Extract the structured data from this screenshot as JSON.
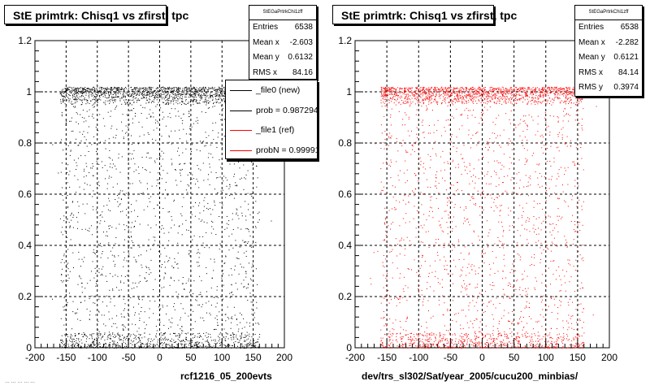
{
  "chart_data": [
    {
      "type": "scatter",
      "title": "StE primtrk: Chisq1  vs zfirst, tpc",
      "xlabel": "rcf1216_05_200evts",
      "ylabel": "",
      "xlim": [
        -200,
        200
      ],
      "ylim": [
        0,
        1.2
      ],
      "x_ticks": [
        "-200",
        "-150",
        "-100",
        "-50",
        "0",
        "50",
        "100",
        "150",
        "200"
      ],
      "y_ticks": [
        "0",
        "0.2",
        "0.4",
        "0.6",
        "0.8",
        "1",
        "1.2"
      ],
      "grid": true,
      "marker_color": "#000000",
      "x_range": [
        -160,
        160
      ],
      "dense_bands": [
        [
          0.95,
          1.02
        ],
        [
          0.0,
          0.06
        ]
      ],
      "stats": {
        "title": "StEGaPrtrkChi1zff",
        "rows": [
          {
            "label": "Entries",
            "value": "6538"
          },
          {
            "label": "Mean x",
            "value": "-2.603"
          },
          {
            "label": "Mean y",
            "value": "0.6132"
          },
          {
            "label": "RMS x",
            "value": "84.16"
          }
        ]
      },
      "legend": {
        "placement": "top-right",
        "entries": [
          {
            "label": "_file0 (new)",
            "color": "#000000"
          },
          {
            "label": "prob = 0.987294",
            "color": "#000000"
          },
          {
            "label": "_file1 (ref)",
            "color": "#ff0000"
          },
          {
            "label": "probN = 0.99991",
            "color": "#ff0000"
          }
        ]
      }
    },
    {
      "type": "scatter",
      "title": "StE primtrk: Chisq1  vs zfirst, tpc",
      "xlabel": "dev/trs_sl302/Sat/year_2005/cucu200_minbias/",
      "ylabel": "",
      "xlim": [
        -200,
        200
      ],
      "ylim": [
        0,
        1.2
      ],
      "x_ticks": [
        "-200",
        "-150",
        "-100",
        "-50",
        "0",
        "50",
        "100",
        "150",
        "200"
      ],
      "y_ticks": [
        "0",
        "0.2",
        "0.4",
        "0.6",
        "0.8",
        "1",
        "1.2"
      ],
      "grid": true,
      "marker_color": "#ff0000",
      "x_range": [
        -160,
        160
      ],
      "dense_bands": [
        [
          0.95,
          1.02
        ],
        [
          0.0,
          0.06
        ]
      ],
      "stats": {
        "title": "StEGaPrtrkChi1zff",
        "rows": [
          {
            "label": "Entries",
            "value": "6538"
          },
          {
            "label": "Mean x",
            "value": "-2.282"
          },
          {
            "label": "Mean y",
            "value": "0.6121"
          },
          {
            "label": "RMS x",
            "value": "84.14"
          },
          {
            "label": "RMS y",
            "value": "0.3974"
          }
        ]
      }
    }
  ],
  "footer": {
    "corner_text": "... ... ... ... ..."
  }
}
